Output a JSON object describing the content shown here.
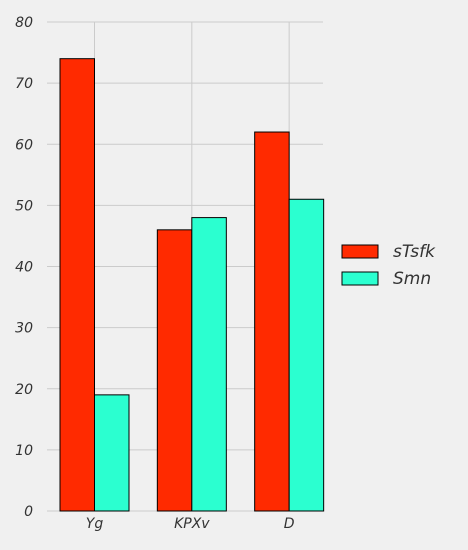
{
  "chart_data": {
    "type": "bar",
    "title": "",
    "xlabel": "",
    "ylabel": "",
    "categories": [
      "Yg",
      "KPXv",
      "D"
    ],
    "series": [
      {
        "name": "sTsfk",
        "values": [
          74,
          46,
          62
        ],
        "color": "#ff2a00"
      },
      {
        "name": "Smn",
        "values": [
          19,
          48,
          51
        ],
        "color": "#2bffd0"
      }
    ],
    "ylim": [
      0,
      80
    ],
    "yticks": [
      0,
      10,
      20,
      30,
      40,
      50,
      60,
      70,
      80
    ],
    "grid": true,
    "legend_position": "right",
    "colors": {
      "background": "#f0f0f0",
      "grid": "#cbcbcb",
      "bar_edge": "#000000",
      "text": "#333333"
    }
  }
}
